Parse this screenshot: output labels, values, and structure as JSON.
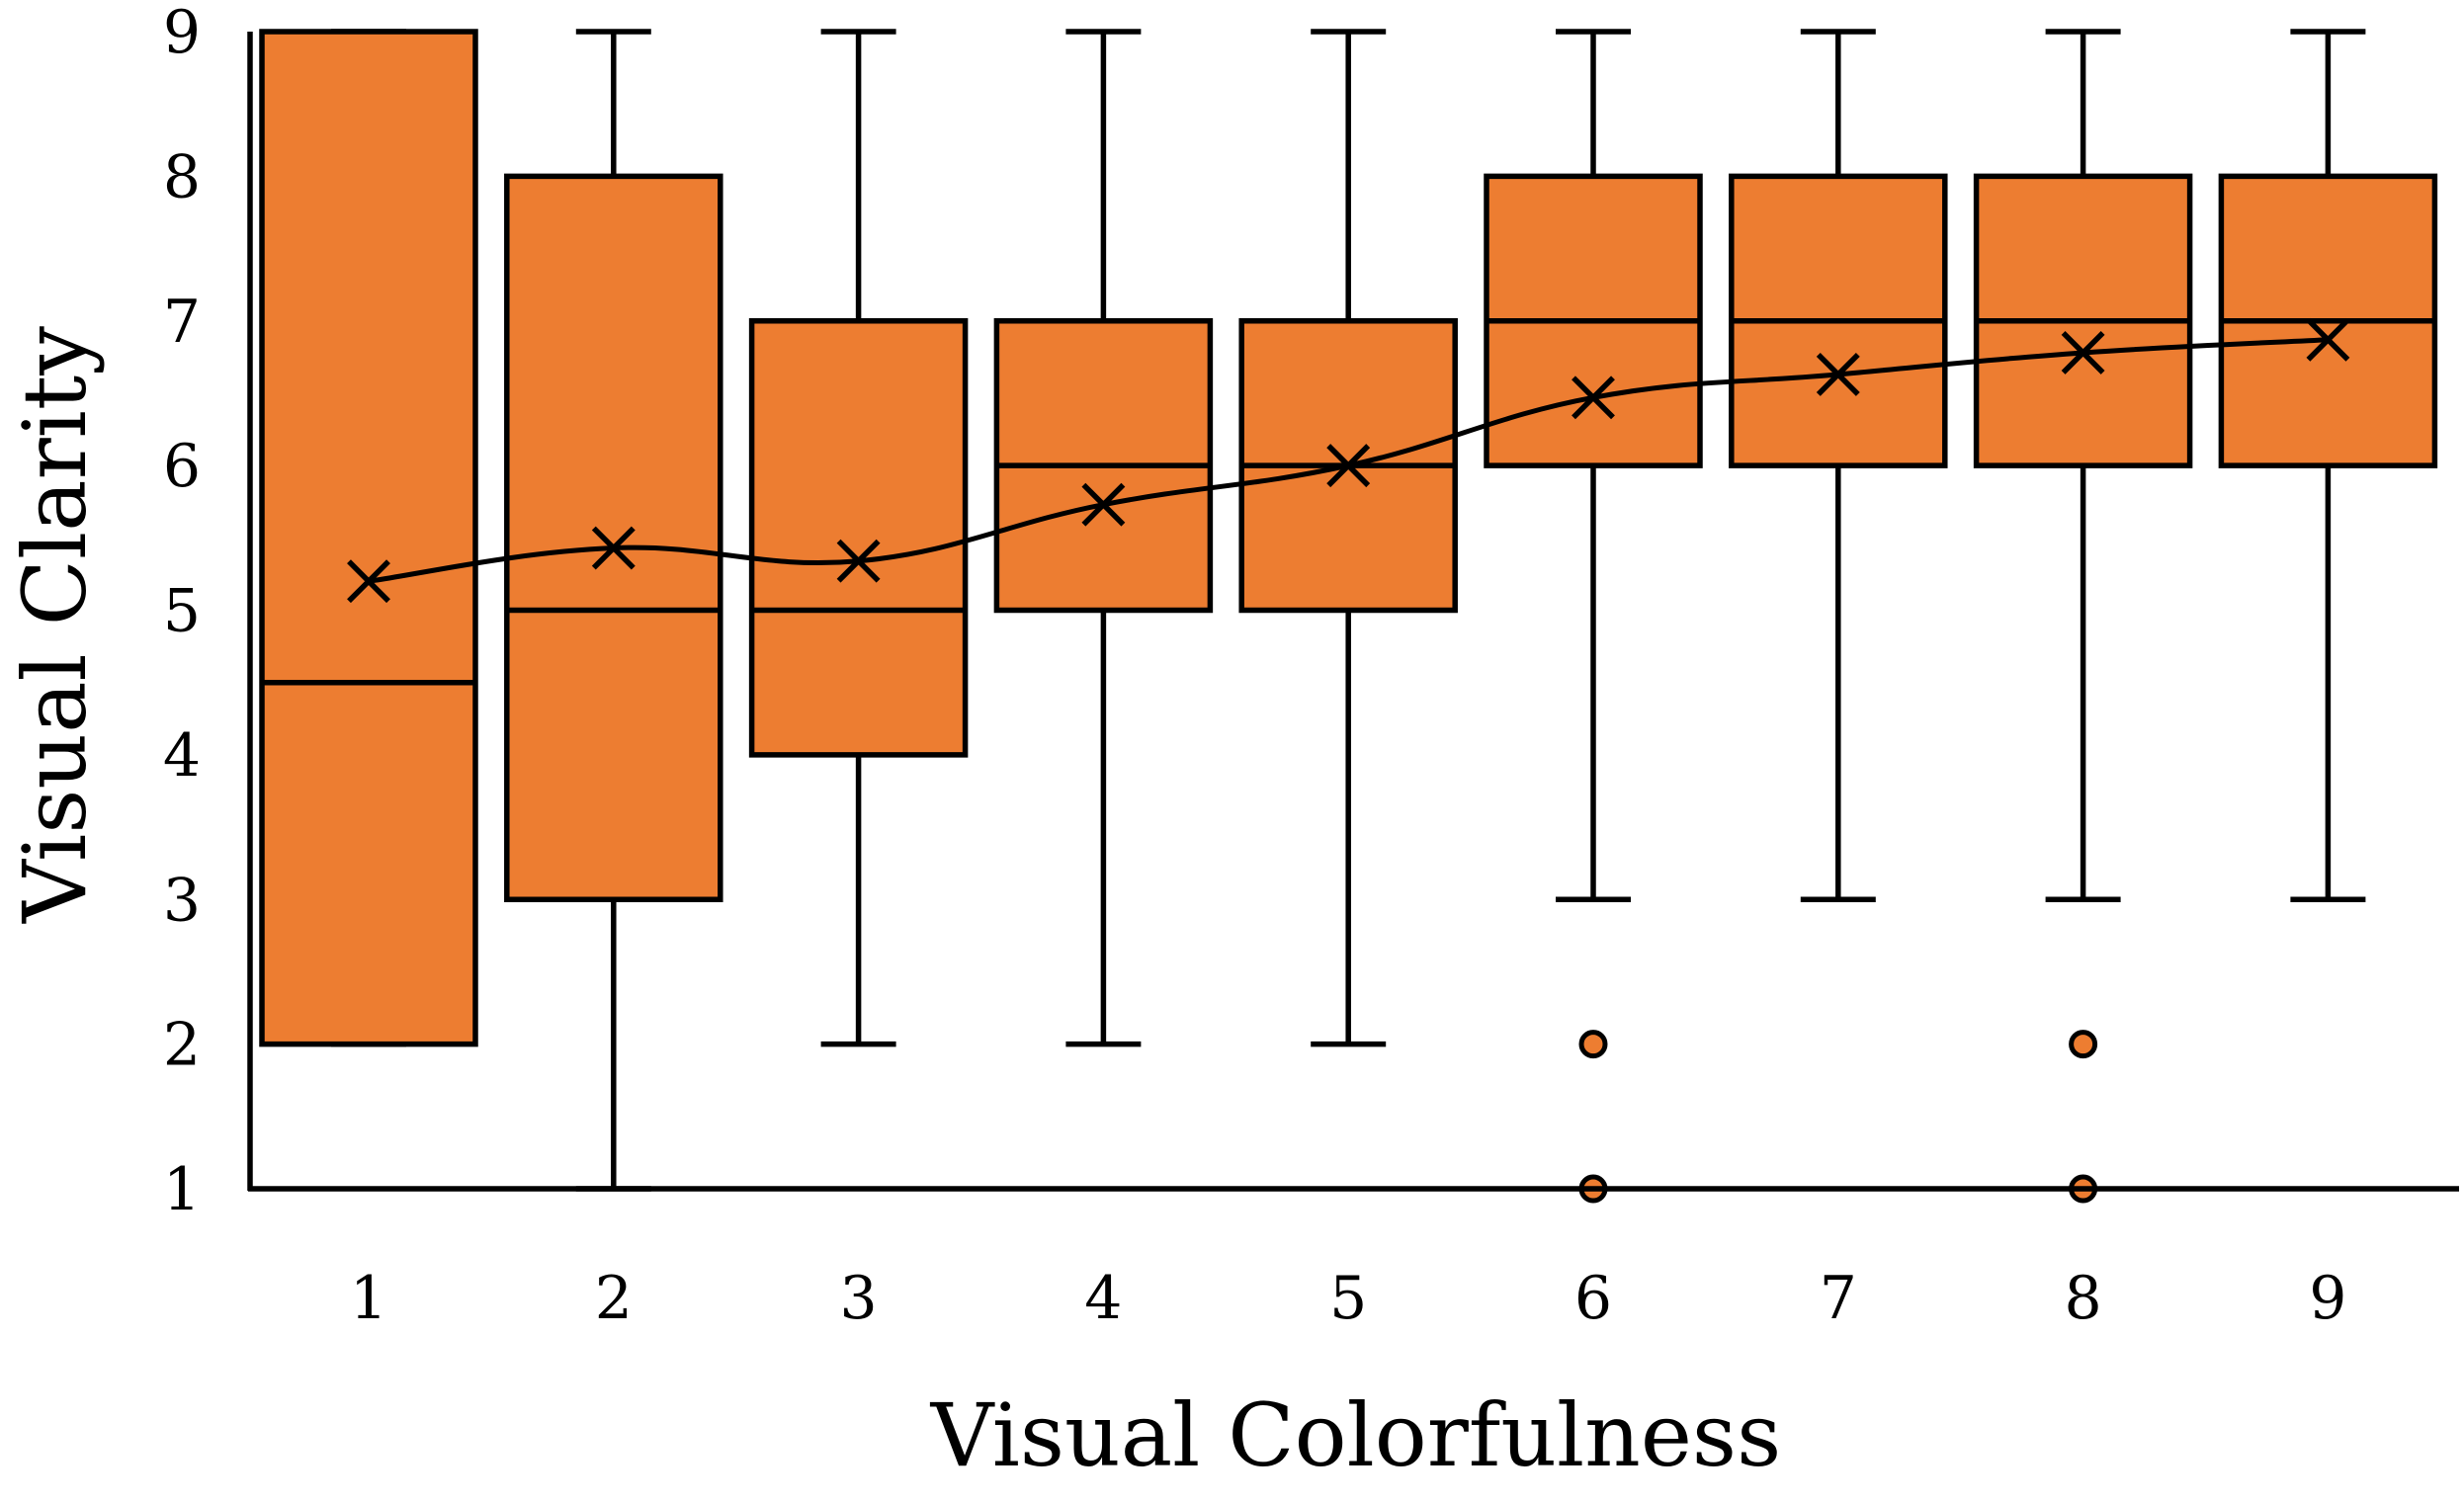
{
  "chart_data": {
    "type": "box",
    "xlabel": "Visual Colorfulness",
    "ylabel": "Visual Clarity",
    "ylim": [
      1,
      9
    ],
    "yticks": [
      "1",
      "2",
      "3",
      "4",
      "5",
      "6",
      "7",
      "8",
      "9"
    ],
    "categories": [
      "1",
      "2",
      "3",
      "4",
      "5",
      "6",
      "7",
      "8",
      "9"
    ],
    "boxes": [
      {
        "category": "1",
        "whisker_low": 2,
        "q1": 2,
        "median": 4.5,
        "q3": 9,
        "whisker_high": 9,
        "mean": 5.2,
        "outliers": []
      },
      {
        "category": "2",
        "whisker_low": 1,
        "q1": 3,
        "median": 5,
        "q3": 8,
        "whisker_high": 9,
        "mean": 5.43,
        "outliers": []
      },
      {
        "category": "3",
        "whisker_low": 2,
        "q1": 4,
        "median": 5,
        "q3": 7,
        "whisker_high": 9,
        "mean": 5.34,
        "outliers": []
      },
      {
        "category": "4",
        "whisker_low": 2,
        "q1": 5,
        "median": 6,
        "q3": 7,
        "whisker_high": 9,
        "mean": 5.73,
        "outliers": []
      },
      {
        "category": "5",
        "whisker_low": 2,
        "q1": 5,
        "median": 6,
        "q3": 7,
        "whisker_high": 9,
        "mean": 6.0,
        "outliers": []
      },
      {
        "category": "6",
        "whisker_low": 3,
        "q1": 6,
        "median": 7,
        "q3": 8,
        "whisker_high": 9,
        "mean": 6.47,
        "outliers": [
          2,
          1
        ]
      },
      {
        "category": "7",
        "whisker_low": 3,
        "q1": 6,
        "median": 7,
        "q3": 8,
        "whisker_high": 9,
        "mean": 6.63,
        "outliers": []
      },
      {
        "category": "8",
        "whisker_low": 3,
        "q1": 6,
        "median": 7,
        "q3": 8,
        "whisker_high": 9,
        "mean": 6.78,
        "outliers": [
          2,
          1
        ]
      },
      {
        "category": "9",
        "whisker_low": 3,
        "q1": 6,
        "median": 7,
        "q3": 8,
        "whisker_high": 9,
        "mean": 6.87,
        "outliers": []
      }
    ],
    "mean_line": true,
    "mean_marker": "x",
    "grid": false,
    "box_color": "#ED7D31",
    "outline_color": "#000000"
  }
}
